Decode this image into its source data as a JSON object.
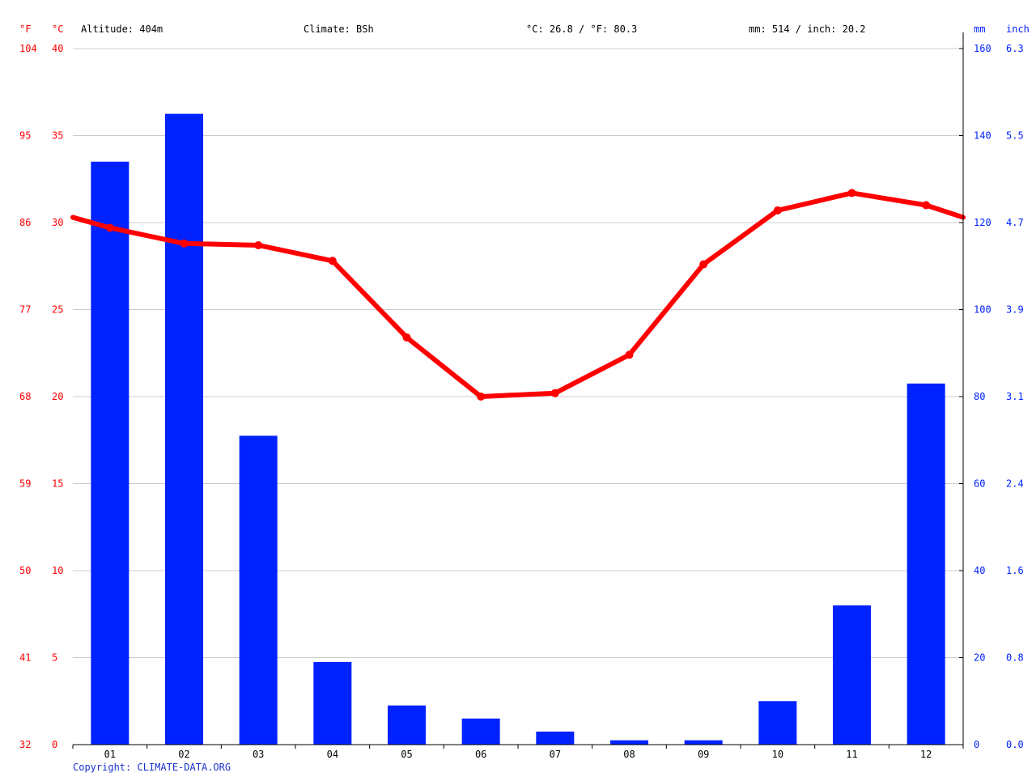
{
  "header": {
    "altitude": "Altitude: 404m",
    "climate": "Climate: BSh",
    "temperature": "°C: 26.8 / °F: 80.3",
    "precipitation": "mm: 514 / inch: 20.2"
  },
  "copyright": "Copyright: CLIMATE-DATA.ORG",
  "chart_data": {
    "type": "bar",
    "categories": [
      "01",
      "02",
      "03",
      "04",
      "05",
      "06",
      "07",
      "08",
      "09",
      "10",
      "11",
      "12"
    ],
    "series": [
      {
        "type": "bar",
        "unit": "mm",
        "axis": "right",
        "color": "#0022ff",
        "values": [
          134,
          145,
          71,
          19,
          9,
          6,
          3,
          1,
          1,
          10,
          32,
          83
        ]
      },
      {
        "type": "line",
        "unit": "°C",
        "axis": "left",
        "color": "#ff0000",
        "values": [
          29.7,
          28.8,
          28.7,
          27.8,
          23.4,
          20.0,
          20.2,
          22.4,
          27.6,
          30.7,
          31.7,
          31.0
        ],
        "edge_values": [
          30.3,
          30.3
        ]
      }
    ],
    "left_axes": {
      "fahrenheit": {
        "label": "°F",
        "ticks": [
          "104",
          "95",
          "86",
          "77",
          "68",
          "59",
          "50",
          "41",
          "32"
        ]
      },
      "celsius": {
        "label": "°C",
        "range": [
          0,
          40
        ],
        "ticks": [
          "40",
          "35",
          "30",
          "25",
          "20",
          "15",
          "10",
          "5",
          "0"
        ]
      }
    },
    "right_axes": {
      "mm": {
        "label": "mm",
        "range": [
          0,
          160
        ],
        "ticks": [
          "160",
          "140",
          "120",
          "100",
          "80",
          "60",
          "40",
          "20",
          "0"
        ]
      },
      "inch": {
        "label": "inch",
        "ticks": [
          "6.3",
          "5.5",
          "4.7",
          "3.9",
          "3.1",
          "2.4",
          "1.6",
          "0.8",
          "0.0"
        ]
      }
    },
    "grid": true
  }
}
